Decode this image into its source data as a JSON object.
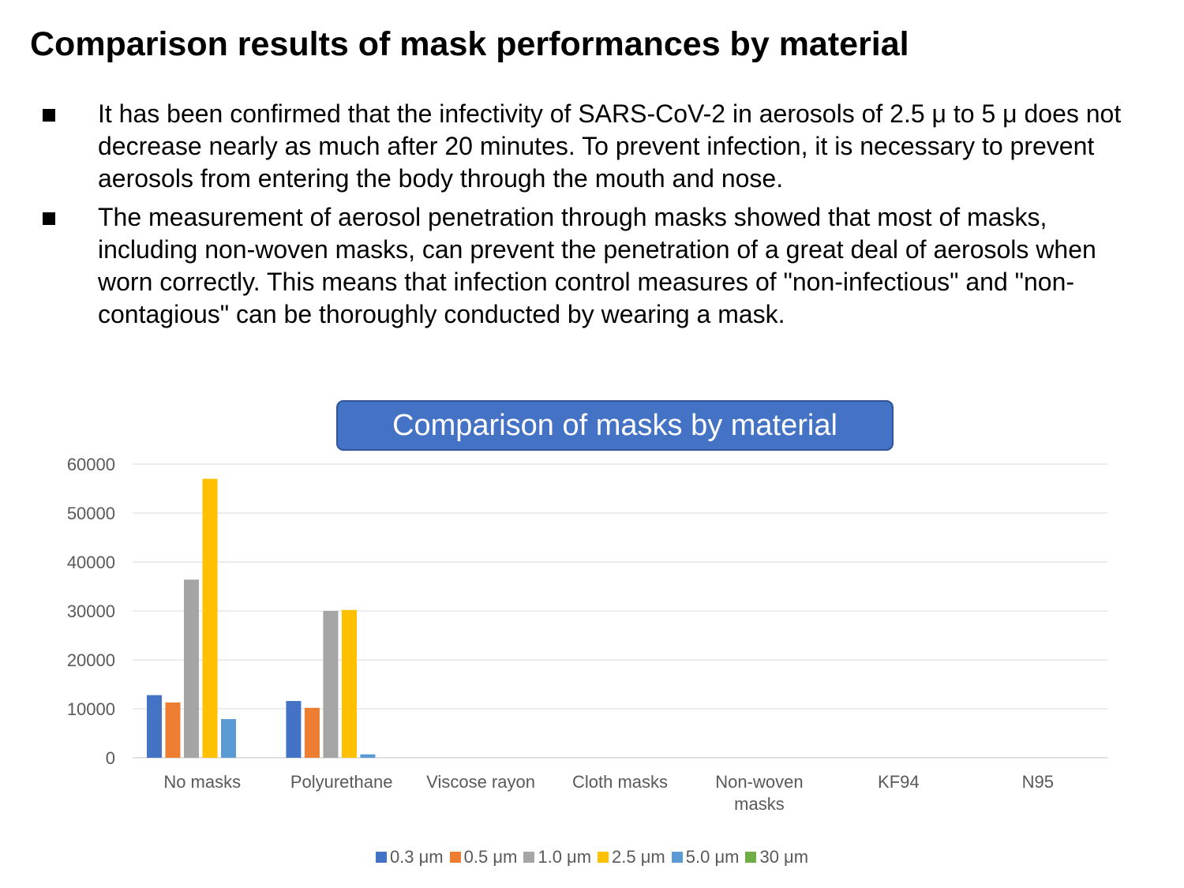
{
  "slide": {
    "title": "Comparison results of mask performances by material",
    "bullets": [
      "It has been confirmed that the infectivity of SARS-CoV-2 in aerosols of 2.5 μ to 5 μ does not decrease nearly as much after 20 minutes. To prevent infection, it is necessary to prevent aerosols from entering the body through the mouth and nose.",
      "The measurement of aerosol penetration through masks showed that most of masks, including non-woven masks, can prevent the penetration of a great deal of aerosols when worn correctly. This means that infection control measures of \"non-infectious\" and \"non-contagious\" can be thoroughly conducted by wearing a mask."
    ]
  },
  "chart_data": {
    "type": "bar",
    "title": "Comparison of masks by material",
    "categories": [
      "No masks",
      "Polyurethane",
      "Viscose rayon",
      "Cloth masks",
      "Non-woven masks",
      "KF94",
      "N95"
    ],
    "series": [
      {
        "name": "0.3 μm",
        "color": "#4472C4",
        "values": [
          12800,
          11600,
          0,
          0,
          0,
          0,
          0
        ]
      },
      {
        "name": "0.5 μm",
        "color": "#ED7D31",
        "values": [
          11300,
          10200,
          0,
          0,
          0,
          0,
          0
        ]
      },
      {
        "name": "1.0 μm",
        "color": "#A5A5A5",
        "values": [
          36400,
          30000,
          0,
          0,
          0,
          0,
          0
        ]
      },
      {
        "name": "2.5 μm",
        "color": "#FFC000",
        "values": [
          57000,
          30200,
          0,
          0,
          0,
          0,
          0
        ]
      },
      {
        "name": "5.0 μm",
        "color": "#5B9BD5",
        "values": [
          7900,
          700,
          0,
          0,
          0,
          0,
          0
        ]
      },
      {
        "name": "30 μm",
        "color": "#70AD47",
        "values": [
          0,
          0,
          0,
          0,
          0,
          0,
          0
        ]
      }
    ],
    "yticks": [
      0,
      10000,
      20000,
      30000,
      40000,
      50000,
      60000
    ],
    "ylim": [
      0,
      60000
    ],
    "grid": true,
    "legend": "bottom"
  }
}
